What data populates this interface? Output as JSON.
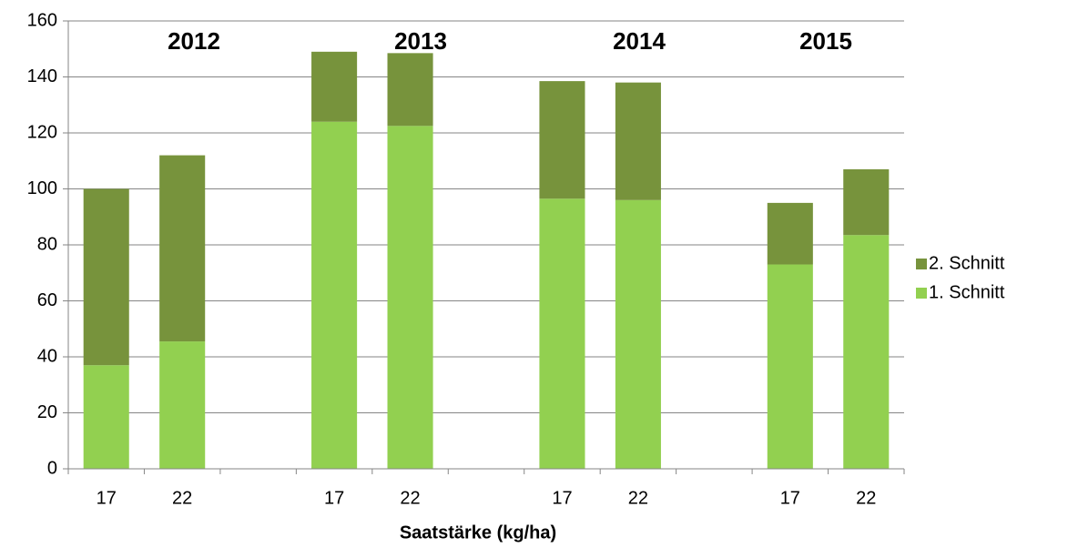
{
  "chart_data": {
    "type": "stacked_bar",
    "xlabel": "Saatstärke (kg/ha)",
    "categories": [
      "17",
      "22",
      null,
      "17",
      "22",
      null,
      "17",
      "22",
      null,
      "17",
      "22"
    ],
    "series": [
      {
        "name": "1. Schnitt",
        "color": "#92d050",
        "values": [
          37,
          45.5,
          null,
          124,
          122.5,
          null,
          96.5,
          96,
          null,
          73,
          83.5
        ]
      },
      {
        "name": "2. Schnitt",
        "color": "#77933c",
        "values": [
          63,
          66.5,
          null,
          25,
          26,
          null,
          42,
          42,
          null,
          22,
          23.5
        ]
      }
    ],
    "annotations": [
      "2012",
      "2013",
      "2014",
      "2015"
    ],
    "ylim": [
      0,
      160
    ],
    "yticks": [
      0,
      20,
      40,
      60,
      80,
      100,
      120,
      140,
      160
    ],
    "grid": true
  }
}
